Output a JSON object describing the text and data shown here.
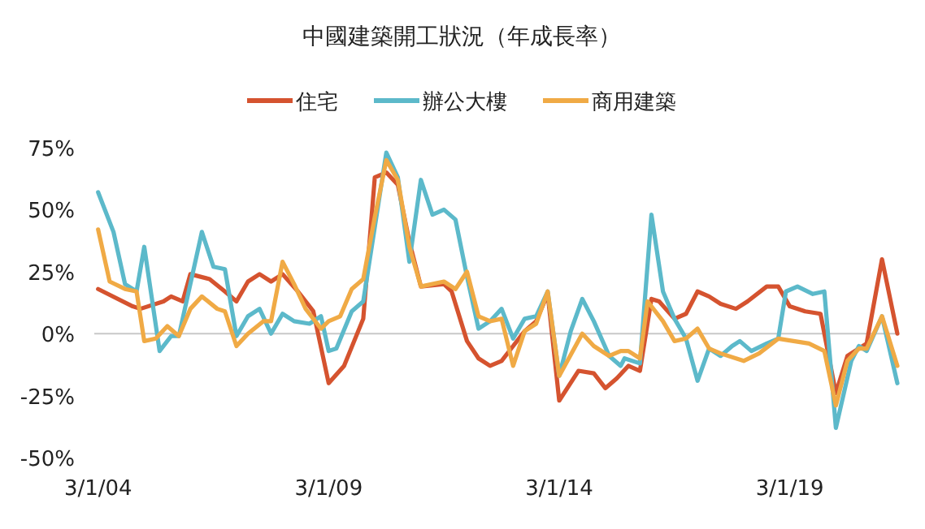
{
  "chart_data": {
    "type": "line",
    "title": "中國建築開工狀況（年成長率）",
    "legend": "top",
    "xlim": [
      "2004-02",
      "2021-07"
    ],
    "ylim": [
      -50,
      75
    ],
    "xticks": [
      {
        "value": "2004-03-01",
        "label": "3/1/04"
      },
      {
        "value": "2009-03-01",
        "label": "3/1/09"
      },
      {
        "value": "2014-03-01",
        "label": "3/1/14"
      },
      {
        "value": "2019-03-01",
        "label": "3/1/19"
      }
    ],
    "yticks": [
      {
        "value": -50,
        "label": "-50%"
      },
      {
        "value": -25,
        "label": "-25%"
      },
      {
        "value": 0,
        "label": "0%"
      },
      {
        "value": 25,
        "label": "25%"
      },
      {
        "value": 50,
        "label": "50%"
      },
      {
        "value": 75,
        "label": "75%"
      }
    ],
    "series": [
      {
        "name": "住宅",
        "color": "#d5532f",
        "x": [
          "2004-03",
          "2004-12",
          "2005-02",
          "2005-08",
          "2005-10",
          "2006-01",
          "2006-03",
          "2006-08",
          "2006-12",
          "2007-03",
          "2007-06",
          "2007-09",
          "2007-12",
          "2008-03",
          "2008-07",
          "2008-11",
          "2009-03",
          "2009-07",
          "2009-12",
          "2010-03",
          "2010-06",
          "2010-09",
          "2010-12",
          "2011-03",
          "2011-09",
          "2011-11",
          "2012-03",
          "2012-06",
          "2012-09",
          "2012-12",
          "2013-03",
          "2013-06",
          "2013-09",
          "2013-12",
          "2014-03",
          "2014-08",
          "2014-12",
          "2015-03",
          "2015-06",
          "2015-09",
          "2015-12",
          "2016-03",
          "2016-05",
          "2016-09",
          "2016-12",
          "2017-03",
          "2017-06",
          "2017-09",
          "2018-01",
          "2018-04",
          "2018-09",
          "2018-12",
          "2019-03",
          "2019-07",
          "2019-11",
          "2020-03",
          "2020-06",
          "2020-09",
          "2020-11",
          "2021-03",
          "2021-07"
        ],
        "values": [
          18,
          11,
          10,
          13,
          15,
          13,
          24,
          22,
          17,
          13,
          21,
          24,
          21,
          24,
          17,
          9,
          -20,
          -13,
          6,
          63,
          65,
          60,
          37,
          19,
          20,
          17,
          -3,
          -10,
          -13,
          -11,
          -5,
          1,
          5,
          16,
          -27,
          -15,
          -16,
          -22,
          -18,
          -13,
          -15,
          14,
          13,
          6,
          8,
          17,
          15,
          12,
          10,
          13,
          19,
          19,
          11,
          9,
          8,
          -24,
          -9,
          -6,
          -4,
          30,
          0
        ]
      },
      {
        "name": "辦公大樓",
        "color": "#5cb9ca",
        "x": [
          "2004-03",
          "2004-07",
          "2004-10",
          "2005-01",
          "2005-03",
          "2005-07",
          "2005-10",
          "2005-12",
          "2006-06",
          "2006-09",
          "2006-12",
          "2007-03",
          "2007-06",
          "2007-09",
          "2007-12",
          "2008-03",
          "2008-06",
          "2008-10",
          "2009-01",
          "2009-03",
          "2009-05",
          "2009-09",
          "2009-12",
          "2010-06",
          "2010-09",
          "2010-12",
          "2011-03",
          "2011-06",
          "2011-09",
          "2011-12",
          "2012-03",
          "2012-06",
          "2012-09",
          "2012-12",
          "2013-03",
          "2013-06",
          "2013-09",
          "2013-12",
          "2014-03",
          "2014-06",
          "2014-09",
          "2014-12",
          "2015-04",
          "2015-07",
          "2015-08",
          "2015-12",
          "2016-03",
          "2016-06",
          "2016-09",
          "2016-12",
          "2017-03",
          "2017-06",
          "2017-09",
          "2017-12",
          "2018-02",
          "2018-05",
          "2018-09",
          "2018-12",
          "2019-02",
          "2019-05",
          "2019-09",
          "2019-12",
          "2020-03",
          "2020-07",
          "2020-09",
          "2020-11",
          "2021-03",
          "2021-07"
        ],
        "values": [
          57,
          41,
          20,
          17,
          35,
          -7,
          -1,
          -1,
          41,
          27,
          26,
          -1,
          7,
          10,
          0,
          8,
          5,
          4,
          7,
          -7,
          -6,
          9,
          13,
          73,
          63,
          29,
          62,
          48,
          50,
          46,
          23,
          2,
          5,
          10,
          -2,
          6,
          7,
          17,
          -17,
          1,
          14,
          5,
          -9,
          -13,
          -10,
          -12,
          48,
          17,
          6,
          -2,
          -19,
          -6,
          -9,
          -5,
          -3,
          -7,
          -4,
          -2,
          17,
          19,
          16,
          17,
          -38,
          -11,
          -5,
          -7,
          7,
          -20
        ]
      },
      {
        "name": "商用建築",
        "color": "#f0aa45",
        "x": [
          "2004-03",
          "2004-06",
          "2004-10",
          "2005-01",
          "2005-03",
          "2005-06",
          "2005-09",
          "2005-12",
          "2006-03",
          "2006-06",
          "2006-10",
          "2006-12",
          "2007-03",
          "2007-06",
          "2007-10",
          "2007-12",
          "2008-03",
          "2008-06",
          "2008-09",
          "2009-01",
          "2009-03",
          "2009-06",
          "2009-09",
          "2009-12",
          "2010-03",
          "2010-06",
          "2010-09",
          "2010-12",
          "2011-03",
          "2011-09",
          "2011-12",
          "2012-03",
          "2012-06",
          "2012-09",
          "2012-12",
          "2013-03",
          "2013-06",
          "2013-09",
          "2013-12",
          "2014-03",
          "2014-09",
          "2014-12",
          "2015-04",
          "2015-07",
          "2015-09",
          "2015-12",
          "2016-02",
          "2016-06",
          "2016-09",
          "2016-12",
          "2017-03",
          "2017-06",
          "2017-09",
          "2018-03",
          "2018-07",
          "2018-12",
          "2019-04",
          "2019-08",
          "2019-12",
          "2020-03",
          "2020-06",
          "2020-09",
          "2020-11",
          "2021-03",
          "2021-07"
        ],
        "values": [
          42,
          21,
          18,
          17,
          -3,
          -2,
          3,
          -1,
          10,
          15,
          10,
          9,
          -5,
          0,
          5,
          5,
          29,
          20,
          10,
          2,
          5,
          7,
          18,
          22,
          47,
          70,
          62,
          35,
          19,
          21,
          18,
          25,
          7,
          5,
          6,
          -13,
          1,
          4,
          17,
          -17,
          0,
          -5,
          -9,
          -7,
          -7,
          -10,
          13,
          5,
          -3,
          -2,
          2,
          -6,
          -8,
          -11,
          -8,
          -2,
          -3,
          -4,
          -7,
          -29,
          -11,
          -6,
          -6,
          7,
          -13
        ]
      }
    ]
  }
}
